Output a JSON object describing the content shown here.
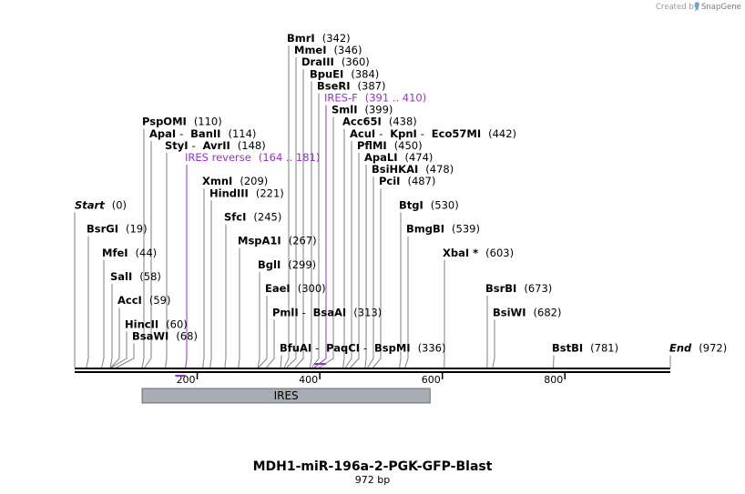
{
  "branding": {
    "created_by": "Created by",
    "product": "SnapGene"
  },
  "title": "MDH1-miR-196a-2-PGK-GFP-Blast",
  "length_label": "972 bp",
  "sequence_length": 972,
  "colors": {
    "primer": "#9a2fcf",
    "feature_fill": "#a7adb3",
    "leader": "#808080",
    "backbone": "#000000"
  },
  "ticks": [
    {
      "label": "200",
      "value": 200
    },
    {
      "label": "400",
      "value": 400
    },
    {
      "label": "600",
      "value": 600
    },
    {
      "label": "800",
      "value": 800
    }
  ],
  "feature": {
    "name": "IRES",
    "start": 110,
    "end": 580
  },
  "labels": [
    {
      "parts": [
        "BmrI"
      ],
      "pos": "(342)",
      "site": 342,
      "row": 0,
      "anchor": 0
    },
    {
      "parts": [
        "MmeI"
      ],
      "pos": "(346)",
      "site": 346,
      "row": 1,
      "anchor": 0
    },
    {
      "parts": [
        "DraIII"
      ],
      "pos": "(360)",
      "site": 360,
      "row": 2,
      "anchor": 0
    },
    {
      "parts": [
        "BpuEI"
      ],
      "pos": "(384)",
      "site": 384,
      "row": 3,
      "anchor": 0
    },
    {
      "parts": [
        "BseRI"
      ],
      "pos": "(387)",
      "site": 387,
      "row": 4,
      "anchor": 0
    },
    {
      "parts": [
        "IRES-F"
      ],
      "pos": "(391 .. 410)",
      "site": 391,
      "row": 5,
      "anchor": 0,
      "primer": true
    },
    {
      "parts": [
        "SmlI"
      ],
      "pos": "(399)",
      "site": 399,
      "row": 6,
      "anchor": 0
    },
    {
      "parts": [
        "PspOMI"
      ],
      "pos": "(110)",
      "site": 110,
      "row": 7,
      "anchor": 0
    },
    {
      "parts": [
        "Acc65I"
      ],
      "pos": "(438)",
      "site": 438,
      "row": 7,
      "anchor": 0
    },
    {
      "parts": [
        "ApaI",
        "BanII"
      ],
      "pos": "(114)",
      "site": 114,
      "row": 8,
      "anchor": 0
    },
    {
      "parts": [
        "AcuI",
        "KpnI",
        "Eco57MI"
      ],
      "pos": "(442)",
      "site": 442,
      "row": 8,
      "anchor": 0
    },
    {
      "parts": [
        "StyI",
        "AvrII"
      ],
      "pos": "(148)",
      "site": 148,
      "row": 9,
      "anchor": 0
    },
    {
      "parts": [
        "PflMI"
      ],
      "pos": "(450)",
      "site": 450,
      "row": 9,
      "anchor": 0
    },
    {
      "parts": [
        "IRES reverse"
      ],
      "pos": "(164 .. 181)",
      "site": 181,
      "row": 10,
      "anchor": 0,
      "primer": true
    },
    {
      "parts": [
        "ApaLI"
      ],
      "pos": "(474)",
      "site": 474,
      "row": 10,
      "anchor": 0
    },
    {
      "parts": [
        "BsiHKAI"
      ],
      "pos": "(478)",
      "site": 478,
      "row": 11,
      "anchor": 0
    },
    {
      "parts": [
        "XmnI"
      ],
      "pos": "(209)",
      "site": 209,
      "row": 12,
      "anchor": 0
    },
    {
      "parts": [
        "PciI"
      ],
      "pos": "(487)",
      "site": 487,
      "row": 12,
      "anchor": 0
    },
    {
      "parts": [
        "HindIII"
      ],
      "pos": "(221)",
      "site": 221,
      "row": 13,
      "anchor": 0
    },
    {
      "parts": [
        "Start"
      ],
      "pos": "(0)",
      "site": 0,
      "row": 14,
      "anchor": 0,
      "terminus": true
    },
    {
      "parts": [
        "BtgI"
      ],
      "pos": "(530)",
      "site": 530,
      "row": 14,
      "anchor": 0
    },
    {
      "parts": [
        "SfcI"
      ],
      "pos": "(245)",
      "site": 245,
      "row": 15,
      "anchor": 0
    },
    {
      "parts": [
        "BsrGI"
      ],
      "pos": "(19)",
      "site": 19,
      "row": 16,
      "anchor": 0
    },
    {
      "parts": [
        "BmgBI"
      ],
      "pos": "(539)",
      "site": 539,
      "row": 16,
      "anchor": 0
    },
    {
      "parts": [
        "MspA1I"
      ],
      "pos": "(267)",
      "site": 267,
      "row": 17,
      "anchor": 0
    },
    {
      "parts": [
        "MfeI"
      ],
      "pos": "(44)",
      "site": 44,
      "row": 18,
      "anchor": 0
    },
    {
      "parts": [
        "XbaI *"
      ],
      "pos": "(603)",
      "site": 603,
      "row": 18,
      "anchor": 0
    },
    {
      "parts": [
        "BglI"
      ],
      "pos": "(299)",
      "site": 299,
      "row": 19,
      "anchor": 0
    },
    {
      "parts": [
        "SalI"
      ],
      "pos": "(58)",
      "site": 58,
      "row": 20,
      "anchor": 0
    },
    {
      "parts": [
        "EaeI"
      ],
      "pos": "(300)",
      "site": 300,
      "row": 21,
      "anchor": 0
    },
    {
      "parts": [
        "BsrBI"
      ],
      "pos": "(673)",
      "site": 673,
      "row": 21,
      "anchor": 0
    },
    {
      "parts": [
        "AccI"
      ],
      "pos": "(59)",
      "site": 59,
      "row": 22,
      "anchor": 0
    },
    {
      "parts": [
        "PmlI",
        "BsaAI"
      ],
      "pos": "(313)",
      "site": 313,
      "row": 23,
      "anchor": 0
    },
    {
      "parts": [
        "BsiWI"
      ],
      "pos": "(682)",
      "site": 682,
      "row": 23,
      "anchor": 0
    },
    {
      "parts": [
        "HincII"
      ],
      "pos": "(60)",
      "site": 60,
      "row": 24,
      "anchor": 0
    },
    {
      "parts": [
        "BsaWI"
      ],
      "pos": "(68)",
      "site": 68,
      "row": 25,
      "anchor": 0
    },
    {
      "parts": [
        "BfuAI",
        "PaqCI",
        "BspMI"
      ],
      "pos": "(336)",
      "site": 336,
      "row": 26,
      "anchor": 0
    },
    {
      "parts": [
        "BstBI"
      ],
      "pos": "(781)",
      "site": 781,
      "row": 26,
      "anchor": 0
    },
    {
      "parts": [
        "End"
      ],
      "pos": "(972)",
      "site": 972,
      "row": 26,
      "anchor": 0,
      "terminus": true
    }
  ]
}
